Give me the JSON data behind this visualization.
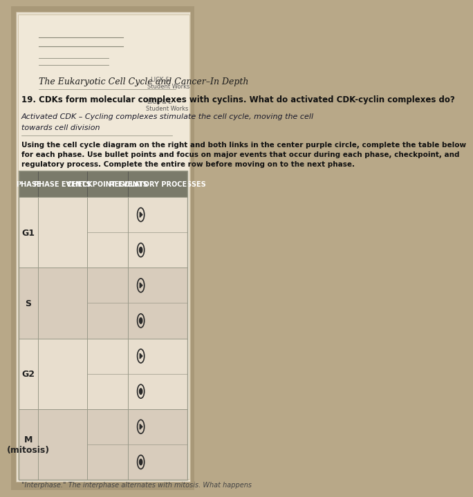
{
  "bg_color": "#b8a888",
  "paper_color": "#f0e8d8",
  "title_text": "The Eukaryotic Cell Cycle and Cancer–In Depth",
  "q19_text": "19. CDKs form molecular complexes with cyclins. What do activated CDK-cyclin complexes do?",
  "handwritten_line1": "Activated CDK – Cycling complexes stimulate the cell cycle, moving the cell",
  "handwritten_line2": "towards cell division",
  "instruction_text": "Using the cell cycle diagram on the right and both links in the center purple circle, complete the table below\nfor each phase. Use bullet points and focus on major events that occur during each phase, checkpoint, and\nregulatory process. Complete the entire row before moving on to the next phase.",
  "top_right_text": "LICK &\nStudent Works",
  "top_right_text2": "LICK & L\nStudent Works",
  "header_bg": "#7a7a6a",
  "header_text_color": "#ffffff",
  "col_headers": [
    "PHASE",
    "PHASE EVENTS",
    "CHECKPOINT EVENTS",
    "REGULATORY PROCESSES"
  ],
  "row_labels": [
    "G1",
    "S",
    "G2",
    "M\n(mitosis)"
  ],
  "cell_bg_light": "#e8dece",
  "cell_bg_dark": "#d8ccbc",
  "line_color": "#999988",
  "bottom_text": "\"Interphase.\" The interphase alternates with mitosis. What happens"
}
